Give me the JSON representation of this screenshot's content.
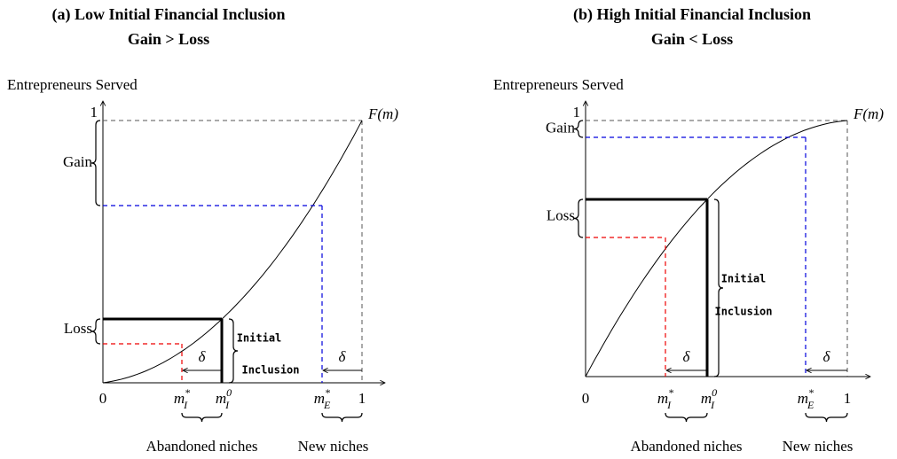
{
  "panels": [
    {
      "title": "(a) Low Initial Financial Inclusion",
      "subtitle": "Gain > Loss",
      "y_axis_label": "Entrepreneurs Served",
      "y_one": "1",
      "curve_label": "F(m)",
      "gain": "Gain",
      "loss": "Loss",
      "initial": "Initial",
      "inclusion": "Inclusion",
      "delta": "δ",
      "x_zero": "0",
      "x_one": "1",
      "m_i_star": {
        "base": "m",
        "sub": "I",
        "sup": "*"
      },
      "m_i_zero": {
        "base": "m",
        "sub": "I",
        "sup": "0"
      },
      "m_e_star": {
        "base": "m",
        "sub": "E",
        "sup": "*"
      },
      "abandoned": "Abandoned niches",
      "new_niches": "New niches"
    },
    {
      "title": "(b) High Initial Financial Inclusion",
      "subtitle": "Gain < Loss",
      "y_axis_label": "Entrepreneurs Served",
      "y_one": "1",
      "curve_label": "F(m)",
      "gain": "Gain",
      "loss": "Loss",
      "initial": "Initial",
      "inclusion": "Inclusion",
      "delta": "δ",
      "x_zero": "0",
      "x_one": "1",
      "m_i_star": {
        "base": "m",
        "sub": "I",
        "sup": "*"
      },
      "m_i_zero": {
        "base": "m",
        "sub": "I",
        "sup": "0"
      },
      "m_e_star": {
        "base": "m",
        "sub": "E",
        "sup": "*"
      },
      "abandoned": "Abandoned niches",
      "new_niches": "New niches"
    }
  ]
}
